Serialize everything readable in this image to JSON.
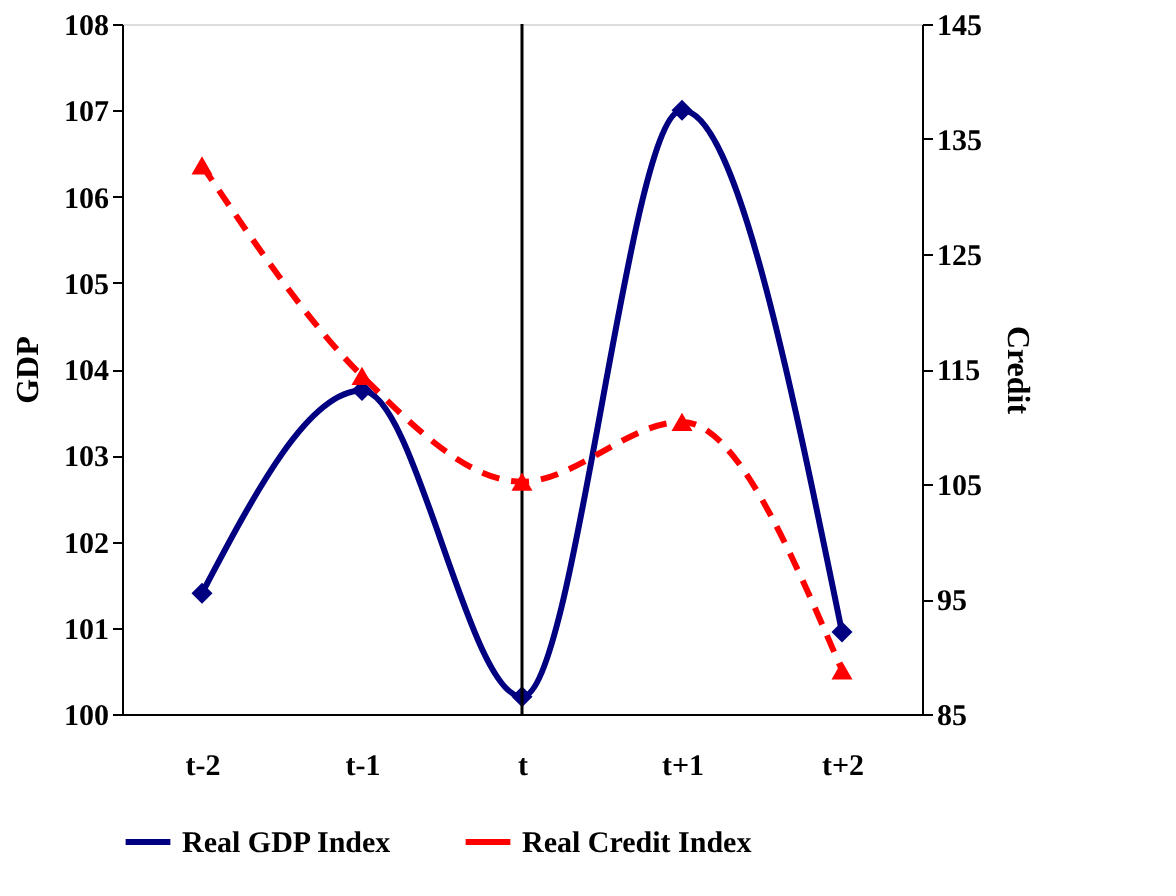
{
  "chart_data": {
    "type": "line",
    "categories": [
      "t-2",
      "t-1",
      "t",
      "t+1",
      "t+2"
    ],
    "ylabel": "GDP",
    "y2label": "Credit",
    "ylim": [
      100,
      108
    ],
    "yticks": [
      100,
      101,
      102,
      103,
      104,
      105,
      106,
      107,
      108
    ],
    "y2lim": [
      85,
      145
    ],
    "y2ticks": [
      85,
      95,
      105,
      115,
      125,
      135,
      145
    ],
    "series": [
      {
        "name": "Real GDP Index",
        "color": "#000080",
        "marker": "diamond",
        "line_style": "solid",
        "values": [
          101.4,
          103.75,
          100.2,
          107.0,
          100.95
        ]
      },
      {
        "name": "Real Credit Index",
        "color": "#ff0000",
        "marker": "triangle",
        "line_style": "dashed",
        "axis": "y2",
        "values": [
          132.7,
          114.4,
          105.2,
          110.4,
          88.8
        ]
      }
    ],
    "ref_lines": [
      {
        "axis": "x",
        "value": "t",
        "color": "#000000"
      }
    ],
    "grid": false,
    "legend": "bottom"
  }
}
